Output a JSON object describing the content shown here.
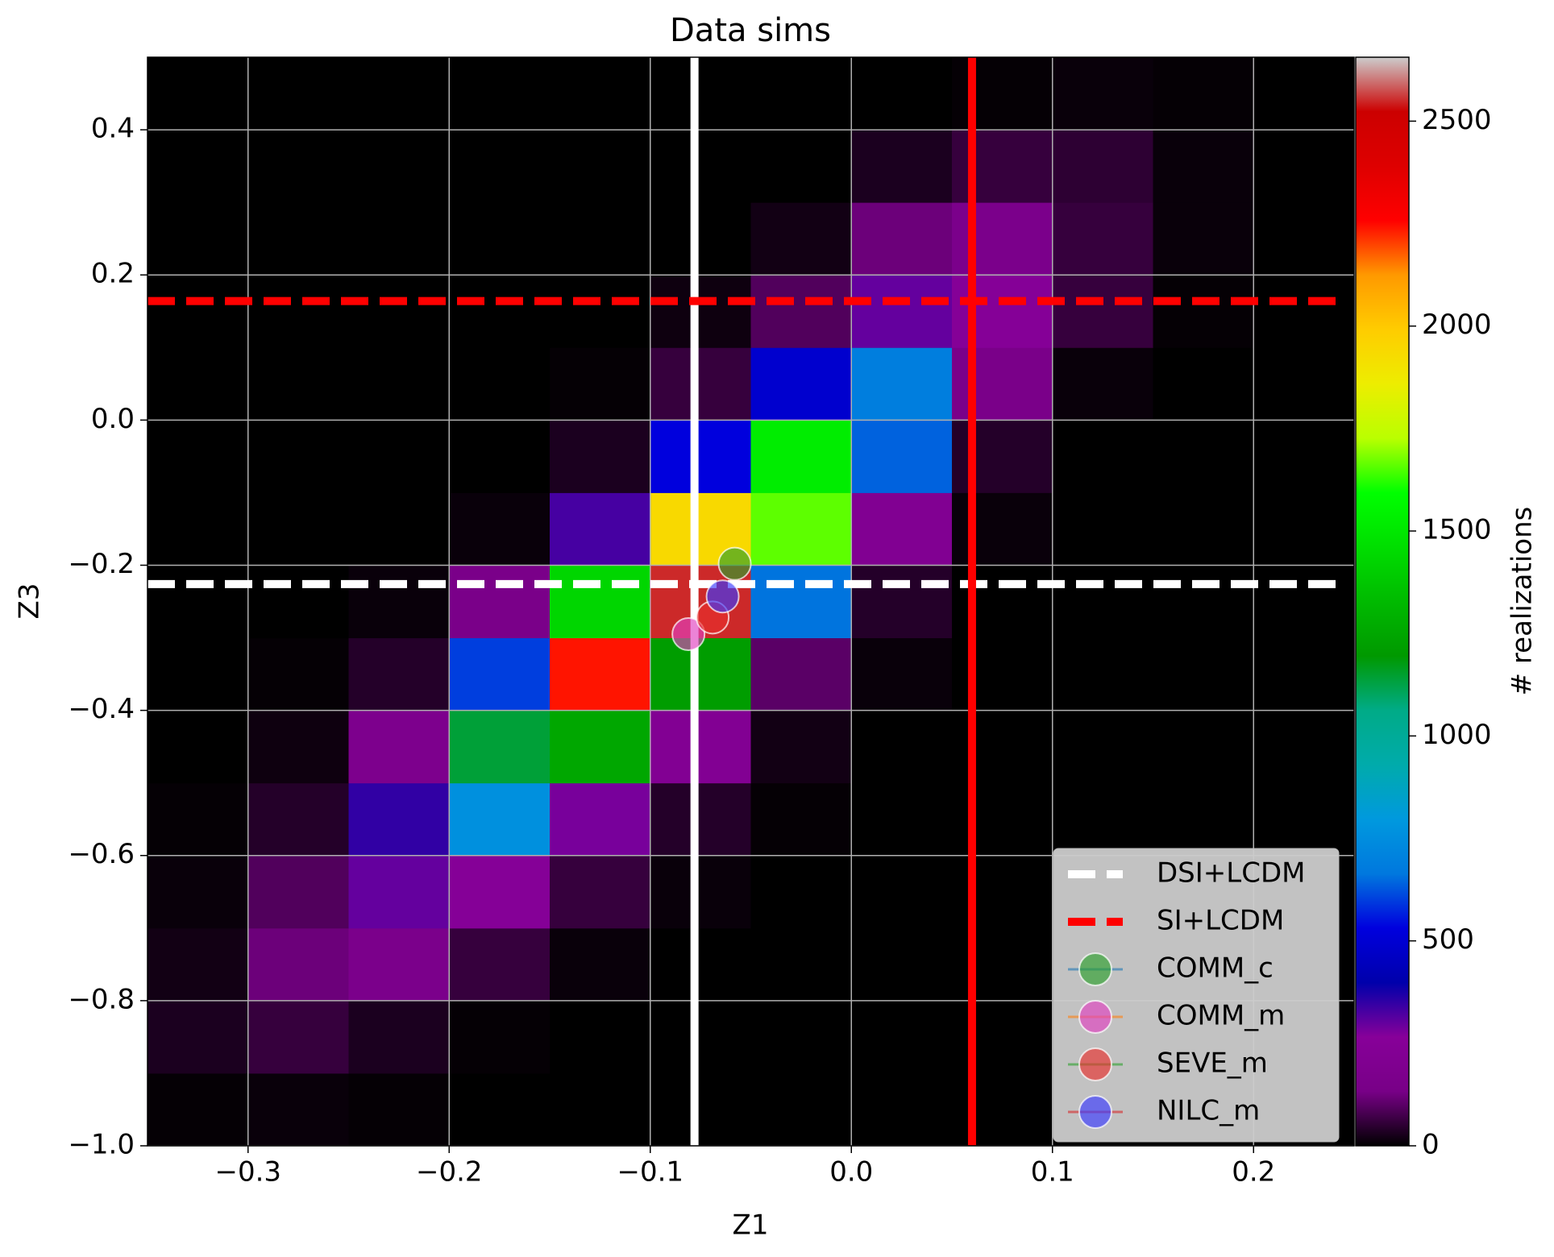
{
  "chart_data": {
    "type": "hist2d",
    "title": "Data sims",
    "x_label": "Z1",
    "y_label": "Z3",
    "xlim": [
      -0.35,
      0.25
    ],
    "xticks": [
      {
        "value": -0.3,
        "label": "−0.3"
      },
      {
        "value": -0.2,
        "label": "−0.2"
      },
      {
        "value": -0.1,
        "label": "−0.1"
      },
      {
        "value": 0.0,
        "label": "0.0"
      },
      0.1,
      0.2
    ],
    "ylim": [
      -1.0,
      0.5
    ],
    "yticks": [
      {
        "value": -1.0,
        "label": "−1.0"
      },
      {
        "value": -0.8,
        "label": "−0.8"
      },
      {
        "value": -0.6,
        "label": "−0.6"
      },
      {
        "value": -0.4,
        "label": "−0.4"
      },
      {
        "value": -0.2,
        "label": "−0.2"
      },
      {
        "value": 0.0,
        "label": "0.0"
      },
      0.2,
      0.4
    ],
    "grid": true,
    "colormap": "nipy_spectral",
    "colorbar_label": "# realizations",
    "clim": [
      0,
      2656
    ],
    "cticks": [
      0,
      500,
      1000,
      1500,
      2000,
      2500
    ],
    "heatmap": {
      "xbins": [
        -0.35,
        -0.3,
        -0.25,
        -0.2,
        -0.15,
        -0.1,
        -0.05,
        0.0,
        0.05,
        0.1,
        0.15,
        0.2,
        0.25
      ],
      "ybins": [
        -1.0,
        -0.9,
        -0.8,
        -0.7,
        -0.6,
        -0.5,
        -0.4,
        -0.3,
        -0.2,
        -0.1,
        0.0,
        0.1,
        0.2,
        0.3,
        0.4,
        0.5
      ],
      "z": [
        [
          5,
          10,
          5,
          0,
          0,
          0,
          0,
          0,
          0,
          0,
          0,
          0
        ],
        [
          30,
          60,
          30,
          5,
          0,
          0,
          0,
          0,
          0,
          0,
          0,
          0
        ],
        [
          20,
          120,
          160,
          60,
          10,
          0,
          0,
          0,
          0,
          0,
          0,
          0
        ],
        [
          10,
          90,
          300,
          250,
          60,
          10,
          0,
          0,
          0,
          0,
          0,
          0
        ],
        [
          5,
          40,
          350,
          760,
          280,
          40,
          5,
          0,
          0,
          0,
          0,
          0
        ],
        [
          0,
          15,
          180,
          1140,
          1250,
          220,
          20,
          0,
          0,
          0,
          0,
          0
        ],
        [
          0,
          5,
          40,
          600,
          2240,
          1210,
          100,
          10,
          0,
          0,
          0,
          0
        ],
        [
          0,
          0,
          10,
          150,
          1430,
          2550,
          660,
          40,
          0,
          0,
          0,
          0
        ],
        [
          0,
          0,
          0,
          10,
          330,
          1940,
          1660,
          210,
          10,
          0,
          0,
          0
        ],
        [
          0,
          0,
          0,
          0,
          30,
          530,
          1520,
          640,
          40,
          0,
          0,
          0
        ],
        [
          0,
          0,
          0,
          0,
          5,
          60,
          490,
          690,
          150,
          10,
          0,
          0
        ],
        [
          0,
          0,
          0,
          0,
          0,
          15,
          90,
          300,
          250,
          60,
          5,
          0
        ],
        [
          0,
          0,
          0,
          0,
          0,
          0,
          20,
          120,
          160,
          60,
          10,
          0
        ],
        [
          0,
          0,
          0,
          0,
          0,
          0,
          0,
          30,
          60,
          50,
          10,
          0
        ],
        [
          0,
          0,
          0,
          0,
          0,
          0,
          0,
          0,
          5,
          10,
          5,
          0
        ]
      ]
    },
    "reference_lines": [
      {
        "name": "DSI+LCDM",
        "color": "#ffffff",
        "x": -0.078,
        "y": -0.226
      },
      {
        "name": "SI+LCDM",
        "color": "#ff0000",
        "x": 0.06,
        "y": 0.164
      }
    ],
    "series": [
      {
        "name": "COMM_c",
        "color": "#2ca02c",
        "line_color": "#1f77b4",
        "x": [
          -0.058
        ],
        "y": [
          -0.198
        ]
      },
      {
        "name": "COMM_m",
        "color": "#e040c0",
        "line_color": "#ff7f0e",
        "x": [
          -0.081
        ],
        "y": [
          -0.295
        ]
      },
      {
        "name": "SEVE_m",
        "color": "#e8302c",
        "line_color": "#2ca02c",
        "x": [
          -0.069
        ],
        "y": [
          -0.272
        ]
      },
      {
        "name": "NILC_m",
        "color": "#3a3aff",
        "line_color": "#d62728",
        "x": [
          -0.064
        ],
        "y": [
          -0.243
        ]
      }
    ],
    "legend": "lower right"
  }
}
